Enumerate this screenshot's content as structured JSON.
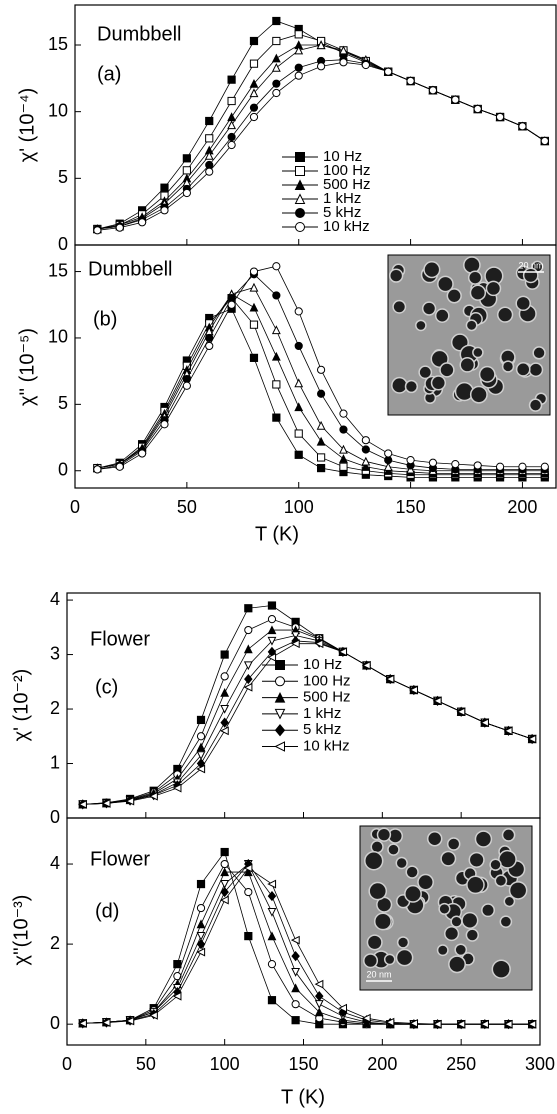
{
  "chart_data": [
    {
      "type": "line",
      "annotations": [
        "Dumbbell",
        "(a)"
      ],
      "ylabel": "χ' (10⁻⁴)",
      "show_xtick_labels": false,
      "legend": true,
      "xlim": [
        0,
        215
      ],
      "ylim": [
        0,
        18
      ],
      "xticks": [
        0,
        50,
        100,
        150,
        200
      ],
      "yticks": [
        0,
        5,
        10,
        15
      ],
      "x": [
        10,
        20,
        30,
        40,
        50,
        60,
        70,
        80,
        90,
        100,
        110,
        120,
        130,
        140,
        150,
        160,
        170,
        180,
        190,
        200,
        210
      ],
      "series": [
        {
          "name": "10 Hz",
          "color": "#000",
          "marker": "square-filled",
          "values": [
            1.2,
            1.6,
            2.6,
            4.3,
            6.5,
            9.3,
            12.4,
            15.3,
            16.8,
            16.2,
            15.2,
            14.4,
            13.7,
            13.0,
            12.3,
            11.6,
            10.9,
            10.2,
            9.6,
            8.9,
            7.8
          ]
        },
        {
          "name": "100 Hz",
          "color": "#000",
          "marker": "square-open",
          "values": [
            1.2,
            1.5,
            2.3,
            3.7,
            5.6,
            8.0,
            10.8,
            13.6,
            15.3,
            15.8,
            15.3,
            14.6,
            13.8,
            13.0,
            12.3,
            11.6,
            10.9,
            10.2,
            9.6,
            8.9,
            7.8
          ]
        },
        {
          "name": "500 Hz",
          "color": "#000",
          "marker": "triangle-filled",
          "values": [
            1.2,
            1.5,
            2.1,
            3.3,
            5.0,
            7.1,
            9.6,
            12.1,
            14.0,
            15.0,
            15.0,
            14.5,
            13.8,
            13.0,
            12.3,
            11.6,
            10.9,
            10.2,
            9.6,
            8.9,
            7.8
          ]
        },
        {
          "name": "1 kHz",
          "color": "#000",
          "marker": "triangle-open",
          "values": [
            1.2,
            1.4,
            2.0,
            3.1,
            4.7,
            6.7,
            9.0,
            11.4,
            13.3,
            14.6,
            15.0,
            14.6,
            13.9,
            13.0,
            12.3,
            11.6,
            10.9,
            10.2,
            9.6,
            8.9,
            7.8
          ]
        },
        {
          "name": "5 kHz",
          "color": "#000",
          "marker": "circle-filled",
          "values": [
            1.2,
            1.4,
            1.9,
            2.8,
            4.2,
            6.0,
            8.1,
            10.3,
            12.1,
            13.3,
            13.8,
            13.9,
            13.6,
            13.0,
            12.3,
            11.6,
            10.9,
            10.2,
            9.6,
            8.9,
            7.8
          ]
        },
        {
          "name": "10 kHz",
          "color": "#000",
          "marker": "circle-open",
          "values": [
            1.1,
            1.3,
            1.7,
            2.6,
            3.9,
            5.5,
            7.5,
            9.6,
            11.4,
            12.7,
            13.4,
            13.7,
            13.5,
            13.0,
            12.3,
            11.6,
            10.9,
            10.2,
            9.6,
            8.9,
            7.8
          ]
        }
      ]
    },
    {
      "type": "line",
      "annotations": [
        "Dumbbell",
        "(b)"
      ],
      "ylabel": "χ'' (10⁻⁵)",
      "xlabel": "T (K)",
      "show_xtick_labels": true,
      "legend": false,
      "inset_scale": "20 nm",
      "xlim": [
        0,
        215
      ],
      "ylim": [
        -1.3,
        17
      ],
      "xticks": [
        0,
        50,
        100,
        150,
        200
      ],
      "yticks": [
        0,
        5,
        10,
        15
      ],
      "x": [
        10,
        20,
        30,
        40,
        50,
        60,
        70,
        80,
        90,
        100,
        110,
        120,
        130,
        140,
        150,
        160,
        170,
        180,
        190,
        200,
        210
      ],
      "series": [
        {
          "name": "10 Hz",
          "color": "#000",
          "marker": "square-filled",
          "values": [
            0.2,
            0.6,
            2.0,
            4.8,
            8.3,
            11.5,
            12.2,
            8.5,
            4.0,
            1.2,
            0.2,
            -0.1,
            -0.3,
            -0.4,
            -0.5,
            -0.5,
            -0.5,
            -0.5,
            -0.5,
            -0.5,
            -0.5
          ]
        },
        {
          "name": "100 Hz",
          "color": "#000",
          "marker": "square-open",
          "values": [
            0.2,
            0.5,
            1.8,
            4.5,
            7.9,
            11.1,
            13.0,
            11.0,
            6.5,
            2.8,
            1.0,
            0.3,
            0.0,
            -0.2,
            -0.3,
            -0.3,
            -0.3,
            -0.3,
            -0.3,
            -0.3,
            -0.3
          ]
        },
        {
          "name": "500 Hz",
          "color": "#000",
          "marker": "triangle-filled",
          "values": [
            0.2,
            0.5,
            1.7,
            4.3,
            7.6,
            10.8,
            13.3,
            12.3,
            8.6,
            4.8,
            2.2,
            0.9,
            0.3,
            0.0,
            -0.1,
            -0.2,
            -0.2,
            -0.2,
            -0.2,
            -0.2,
            -0.2
          ]
        },
        {
          "name": "1 kHz",
          "color": "#000",
          "marker": "triangle-open",
          "values": [
            0.2,
            0.5,
            1.6,
            4.1,
            7.3,
            10.5,
            13.3,
            13.8,
            10.6,
            6.6,
            3.4,
            1.6,
            0.7,
            0.3,
            0.1,
            0.0,
            0.0,
            0.0,
            0.0,
            0.0,
            0.0
          ]
        },
        {
          "name": "5 kHz",
          "color": "#000",
          "marker": "circle-filled",
          "values": [
            0.1,
            0.4,
            1.5,
            3.8,
            6.9,
            10.0,
            13.0,
            14.8,
            13.2,
            9.4,
            5.8,
            3.1,
            1.6,
            0.8,
            0.4,
            0.2,
            0.1,
            0.1,
            0.1,
            0.1,
            0.1
          ]
        },
        {
          "name": "10 kHz",
          "color": "#000",
          "marker": "circle-open",
          "values": [
            0.1,
            0.3,
            1.3,
            3.5,
            6.4,
            9.4,
            12.5,
            15.0,
            15.4,
            12.0,
            7.6,
            4.3,
            2.3,
            1.3,
            0.8,
            0.6,
            0.5,
            0.4,
            0.3,
            0.3,
            0.3
          ]
        }
      ]
    },
    {
      "type": "line",
      "annotations": [
        "Flower",
        "(c)"
      ],
      "ylabel": "χ' (10⁻²)",
      "show_xtick_labels": false,
      "legend": true,
      "xlim": [
        0,
        300
      ],
      "ylim": [
        0,
        4.13
      ],
      "xticks": [
        0,
        50,
        100,
        150,
        200,
        250,
        300
      ],
      "yticks": [
        0,
        1,
        2,
        3,
        4
      ],
      "x": [
        10,
        25,
        40,
        55,
        70,
        85,
        100,
        115,
        130,
        145,
        160,
        175,
        190,
        205,
        220,
        235,
        250,
        265,
        280,
        295
      ],
      "series": [
        {
          "name": "10 Hz",
          "color": "#000",
          "marker": "square-filled",
          "values": [
            0.25,
            0.28,
            0.35,
            0.5,
            0.9,
            1.8,
            3.0,
            3.85,
            3.9,
            3.6,
            3.3,
            3.05,
            2.8,
            2.55,
            2.35,
            2.15,
            1.95,
            1.75,
            1.6,
            1.45
          ]
        },
        {
          "name": "100 Hz",
          "color": "#000",
          "marker": "circle-open",
          "values": [
            0.25,
            0.28,
            0.34,
            0.47,
            0.8,
            1.5,
            2.6,
            3.45,
            3.65,
            3.5,
            3.3,
            3.05,
            2.8,
            2.55,
            2.35,
            2.15,
            1.95,
            1.75,
            1.6,
            1.45
          ]
        },
        {
          "name": "500 Hz",
          "color": "#000",
          "marker": "triangle-filled",
          "values": [
            0.25,
            0.27,
            0.33,
            0.45,
            0.72,
            1.3,
            2.3,
            3.1,
            3.45,
            3.45,
            3.28,
            3.05,
            2.8,
            2.55,
            2.35,
            2.15,
            1.95,
            1.75,
            1.6,
            1.45
          ]
        },
        {
          "name": "1 kHz",
          "color": "#000",
          "marker": "triangle-down-open",
          "values": [
            0.25,
            0.27,
            0.32,
            0.43,
            0.65,
            1.15,
            2.0,
            2.8,
            3.25,
            3.35,
            3.25,
            3.05,
            2.8,
            2.55,
            2.35,
            2.15,
            1.95,
            1.75,
            1.6,
            1.45
          ]
        },
        {
          "name": "5 kHz",
          "color": "#000",
          "marker": "diamond-filled",
          "values": [
            0.25,
            0.27,
            0.32,
            0.42,
            0.6,
            1.0,
            1.75,
            2.55,
            3.05,
            3.25,
            3.22,
            3.05,
            2.8,
            2.55,
            2.35,
            2.15,
            1.95,
            1.75,
            1.6,
            1.45
          ]
        },
        {
          "name": "10 kHz",
          "color": "#000",
          "marker": "triangle-left-open",
          "values": [
            0.25,
            0.27,
            0.31,
            0.4,
            0.55,
            0.9,
            1.6,
            2.4,
            2.95,
            3.2,
            3.2,
            3.05,
            2.8,
            2.55,
            2.35,
            2.15,
            1.95,
            1.75,
            1.6,
            1.45
          ]
        }
      ]
    },
    {
      "type": "line",
      "annotations": [
        "Flower",
        "(d)"
      ],
      "ylabel": "χ''(10⁻³)",
      "xlabel": "T (K)",
      "show_xtick_labels": true,
      "legend": false,
      "inset_scale": "20 nm",
      "xlim": [
        0,
        300
      ],
      "ylim": [
        -0.52,
        5.15
      ],
      "xticks": [
        0,
        50,
        100,
        150,
        200,
        250,
        300
      ],
      "yticks": [
        0,
        2,
        4
      ],
      "x": [
        10,
        25,
        40,
        55,
        70,
        85,
        100,
        115,
        130,
        145,
        160,
        175,
        190,
        205,
        220,
        235,
        250,
        265,
        280,
        295
      ],
      "series": [
        {
          "name": "10 Hz",
          "color": "#000",
          "marker": "square-filled",
          "values": [
            0.02,
            0.05,
            0.1,
            0.4,
            1.5,
            3.5,
            4.3,
            2.2,
            0.6,
            0.1,
            0,
            0,
            0,
            0,
            0,
            0,
            0,
            0,
            0,
            0
          ]
        },
        {
          "name": "100 Hz",
          "color": "#000",
          "marker": "circle-open",
          "values": [
            0.02,
            0.05,
            0.1,
            0.35,
            1.2,
            2.9,
            4.0,
            3.3,
            1.5,
            0.5,
            0.15,
            0.05,
            0,
            0,
            0,
            0,
            0,
            0,
            0,
            0
          ]
        },
        {
          "name": "500 Hz",
          "color": "#000",
          "marker": "triangle-filled",
          "values": [
            0.02,
            0.05,
            0.1,
            0.3,
            1.0,
            2.5,
            3.8,
            3.8,
            2.2,
            0.9,
            0.3,
            0.1,
            0.03,
            0,
            0,
            0,
            0,
            0,
            0,
            0
          ]
        },
        {
          "name": "1 kHz",
          "color": "#000",
          "marker": "triangle-down-open",
          "values": [
            0.02,
            0.05,
            0.1,
            0.3,
            0.9,
            2.2,
            3.5,
            4.0,
            2.8,
            1.3,
            0.5,
            0.2,
            0.05,
            0,
            0,
            0,
            0,
            0,
            0,
            0
          ]
        },
        {
          "name": "5 kHz",
          "color": "#000",
          "marker": "diamond-filled",
          "values": [
            0.02,
            0.04,
            0.09,
            0.25,
            0.8,
            2.0,
            3.3,
            4.0,
            3.2,
            1.7,
            0.7,
            0.3,
            0.1,
            0.03,
            0,
            0,
            0,
            0,
            0,
            0
          ]
        },
        {
          "name": "10 kHz",
          "color": "#000",
          "marker": "triangle-left-open",
          "values": [
            0.02,
            0.04,
            0.08,
            0.22,
            0.7,
            1.8,
            3.1,
            3.9,
            3.5,
            2.1,
            1.0,
            0.4,
            0.15,
            0.05,
            0.02,
            0,
            0,
            0,
            0,
            0
          ]
        }
      ]
    }
  ]
}
